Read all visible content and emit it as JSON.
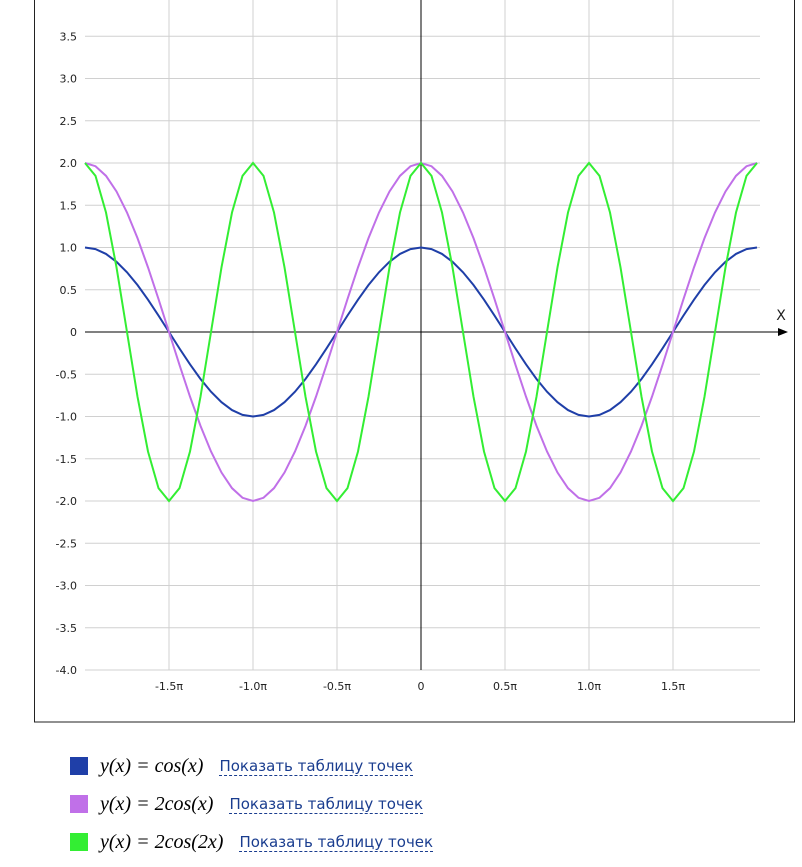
{
  "chart_data": {
    "type": "line",
    "x_label": "X",
    "x": [
      -2,
      -1.9375,
      -1.875,
      -1.8125,
      -1.75,
      -1.6875,
      -1.625,
      -1.5625,
      -1.5,
      -1.4375,
      -1.375,
      -1.3125,
      -1.25,
      -1.1875,
      -1.125,
      -1.0625,
      -1,
      -0.9375,
      -0.875,
      -0.8125,
      -0.75,
      -0.6875,
      -0.625,
      -0.5625,
      -0.5,
      -0.4375,
      -0.375,
      -0.3125,
      -0.25,
      -0.1875,
      -0.125,
      -0.0625,
      0,
      0.0625,
      0.125,
      0.1875,
      0.25,
      0.3125,
      0.375,
      0.4375,
      0.5,
      0.5625,
      0.625,
      0.6875,
      0.75,
      0.8125,
      0.875,
      0.9375,
      1,
      1.0625,
      1.125,
      1.1875,
      1.25,
      1.3125,
      1.375,
      1.4375,
      1.5,
      1.5625,
      1.625,
      1.6875,
      1.75,
      1.8125,
      1.875,
      1.9375,
      2
    ],
    "series": [
      {
        "name": "y(x) = cos(x)",
        "link": "Показать таблицу точек",
        "color": "#1f3fa8",
        "values": [
          1,
          0.981,
          0.924,
          0.831,
          0.707,
          0.556,
          0.383,
          0.195,
          0,
          -0.195,
          -0.383,
          -0.556,
          -0.707,
          -0.831,
          -0.924,
          -0.981,
          -1,
          -0.981,
          -0.924,
          -0.831,
          -0.707,
          -0.556,
          -0.383,
          -0.195,
          0,
          0.195,
          0.383,
          0.556,
          0.707,
          0.831,
          0.924,
          0.981,
          1,
          0.981,
          0.924,
          0.831,
          0.707,
          0.556,
          0.383,
          0.195,
          0,
          -0.195,
          -0.383,
          -0.556,
          -0.707,
          -0.831,
          -0.924,
          -0.981,
          -1,
          -0.981,
          -0.924,
          -0.831,
          -0.707,
          -0.556,
          -0.383,
          -0.195,
          0,
          0.195,
          0.383,
          0.556,
          0.707,
          0.831,
          0.924,
          0.981,
          1
        ]
      },
      {
        "name": "y(x) = 2cos(x)",
        "link": "Показать таблицу точек",
        "color": "#c070e8",
        "values": [
          2,
          1.962,
          1.848,
          1.663,
          1.414,
          1.111,
          0.765,
          0.39,
          0,
          -0.39,
          -0.765,
          -1.111,
          -1.414,
          -1.663,
          -1.848,
          -1.962,
          -2,
          -1.962,
          -1.848,
          -1.663,
          -1.414,
          -1.111,
          -0.765,
          -0.39,
          0,
          0.39,
          0.765,
          1.111,
          1.414,
          1.663,
          1.848,
          1.962,
          2,
          1.962,
          1.848,
          1.663,
          1.414,
          1.111,
          0.765,
          0.39,
          0,
          -0.39,
          -0.765,
          -1.111,
          -1.414,
          -1.663,
          -1.848,
          -1.962,
          -2,
          -1.962,
          -1.848,
          -1.663,
          -1.414,
          -1.111,
          -0.765,
          -0.39,
          0,
          0.39,
          0.765,
          1.111,
          1.414,
          1.663,
          1.848,
          1.962,
          2
        ]
      },
      {
        "name": "y(x) = 2cos(2x)",
        "link": "Показать таблицу точек",
        "color": "#33ee33",
        "values": [
          2,
          1.848,
          1.414,
          0.765,
          0,
          -0.765,
          -1.414,
          -1.848,
          -2,
          -1.848,
          -1.414,
          -0.765,
          0,
          0.765,
          1.414,
          1.848,
          2,
          1.848,
          1.414,
          0.765,
          0,
          -0.765,
          -1.414,
          -1.848,
          -2,
          -1.848,
          -1.414,
          -0.765,
          0,
          0.765,
          1.414,
          1.848,
          2,
          1.848,
          1.414,
          0.765,
          0,
          -0.765,
          -1.414,
          -1.848,
          -2,
          -1.848,
          -1.414,
          -0.765,
          0,
          0.765,
          1.414,
          1.848,
          2,
          1.848,
          1.414,
          0.765,
          0,
          -0.765,
          -1.414,
          -1.848,
          -2,
          -1.848,
          -1.414,
          -0.765,
          0,
          0.765,
          1.414,
          1.848,
          2
        ]
      }
    ],
    "xlim": [
      -2,
      2
    ],
    "xticks": [
      {
        "value": -1.5,
        "label": "-1.5π"
      },
      {
        "value": -1,
        "label": "-1.0π"
      },
      {
        "value": -0.5,
        "label": "-0.5π"
      },
      0,
      {
        "value": 0.5,
        "label": "0.5π"
      },
      {
        "value": 1,
        "label": "1.0π"
      },
      {
        "value": 1.5,
        "label": "1.5π"
      }
    ],
    "ylim": [
      -4,
      3.9
    ],
    "yticks": [
      3.5,
      {
        "value": 3,
        "label": "3.0"
      },
      2.5,
      {
        "value": 2,
        "label": "2.0"
      },
      1.5,
      {
        "value": 1,
        "label": "1.0"
      },
      0.5,
      0,
      -0.5,
      {
        "value": -1,
        "label": "-1.0"
      },
      -1.5,
      {
        "value": -2,
        "label": "-2.0"
      },
      -2.5,
      {
        "value": -3,
        "label": "-3.0"
      },
      -3.5,
      {
        "value": -4,
        "label": "-4.0"
      }
    ],
    "grid": true
  }
}
